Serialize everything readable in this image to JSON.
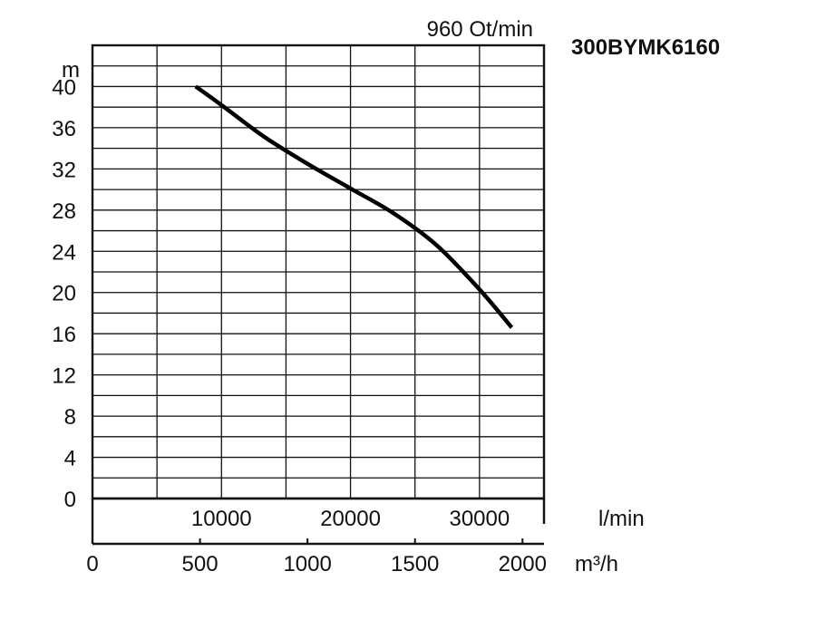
{
  "chart_data": {
    "type": "line",
    "title": "300BYMK6160",
    "subtitle": "960 Ot/min",
    "ylabel": "m",
    "ylim": [
      0,
      44
    ],
    "y_ticks": [
      0,
      4,
      8,
      12,
      16,
      20,
      24,
      28,
      32,
      36,
      40
    ],
    "x_lmin": {
      "label": "l/min",
      "xlim": [
        0,
        35000
      ],
      "ticks": [
        10000,
        20000,
        30000
      ],
      "tick_labels": [
        "10000",
        "20000",
        "30000"
      ]
    },
    "x_m3h": {
      "label": "m³/h",
      "xlim": [
        0,
        2100
      ],
      "ticks": [
        0,
        500,
        1000,
        1500,
        2000
      ],
      "tick_labels": [
        "0",
        "500",
        "1000",
        "1500",
        "2000"
      ]
    },
    "grid": true,
    "series": [
      {
        "x_m3h": [
          480,
          600,
          800,
          1000,
          1200,
          1400,
          1600,
          1800,
          1950
        ],
        "y": [
          40,
          38.2,
          35.1,
          32.5,
          30.1,
          27.7,
          24.6,
          20.3,
          16.6
        ]
      }
    ]
  }
}
